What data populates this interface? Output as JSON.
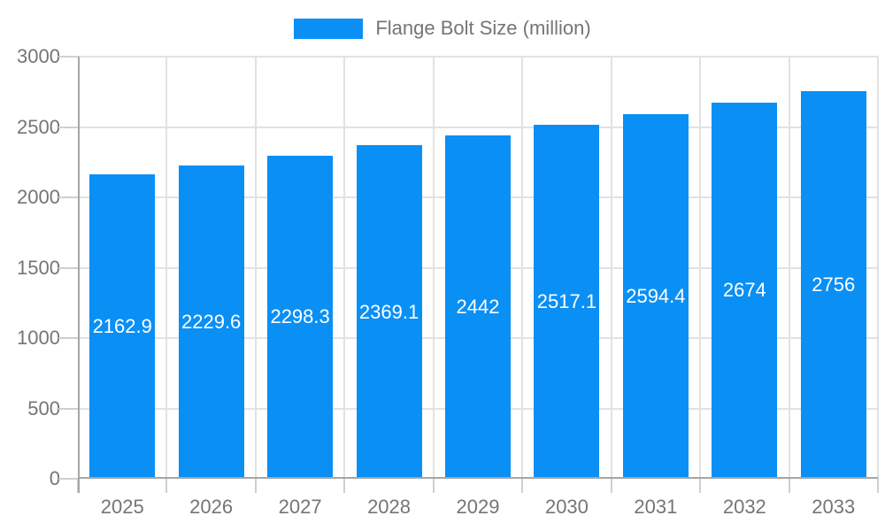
{
  "legend": {
    "label": "Flange Bolt Size (million)",
    "swatch_color": "#0a8ff5"
  },
  "chart_data": {
    "type": "bar",
    "title": "Flange Bolt Size (million)",
    "series_name": "Flange Bolt Size (million)",
    "categories": [
      "2025",
      "2026",
      "2027",
      "2028",
      "2029",
      "2030",
      "2031",
      "2032",
      "2033"
    ],
    "values": [
      2162.9,
      2229.6,
      2298.3,
      2369.1,
      2442,
      2517.1,
      2594.4,
      2674,
      2756
    ],
    "xlabel": "",
    "ylabel": "",
    "ylim": [
      0,
      3000
    ],
    "y_ticks": [
      0,
      500,
      1000,
      1500,
      2000,
      2500,
      3000
    ],
    "grid": true,
    "legend_position": "top",
    "bar_color": "#0a8ff5",
    "bar_label_color": "#ffffff"
  },
  "colors": {
    "axis_line": "#a6a6a6",
    "grid_line": "#e2e2e2",
    "tick_mark": "#cfcfcf",
    "axis_text": "#757575",
    "background": "#ffffff"
  }
}
